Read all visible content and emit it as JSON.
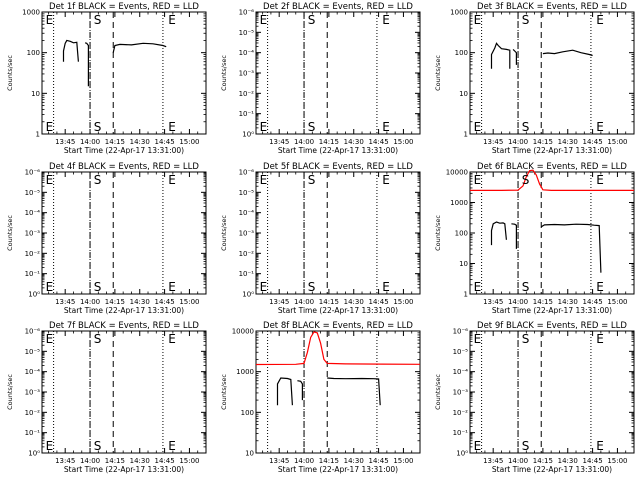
{
  "figure": {
    "x_tick_labels": [
      "13:45",
      "14:00",
      "14:15",
      "14:30",
      "14:45",
      "15:00"
    ],
    "x_label": "Start Time (22-Apr-17 13:31:00)",
    "y_label": "Counts/sec"
  },
  "chart_data": [
    {
      "type": "line",
      "title": "Det 1f BLACK = Events, RED = LLD",
      "xlim": [
        "13:31",
        "15:10"
      ],
      "ylim": [
        1,
        1000
      ],
      "yscale": "log",
      "ytick_labels": [
        "1",
        "10",
        "100",
        "1000"
      ],
      "markers": [
        {
          "text": "E",
          "x": "13:32"
        },
        {
          "text": "S",
          "x": "14:01"
        },
        {
          "text": "E",
          "x": "14:46"
        }
      ],
      "vlines_dotted": [
        "13:38",
        "14:00",
        "14:44"
      ],
      "vlines_dashed": [
        "14:00",
        "14:14"
      ],
      "series": [
        {
          "color": "#000000",
          "points": [
            [
              "13:44",
              60
            ],
            [
              "13:44",
              110
            ],
            [
              "13:45",
              170
            ],
            [
              "13:46",
              200
            ],
            [
              "13:48",
              190
            ],
            [
              "13:50",
              175
            ],
            [
              "13:52",
              180
            ],
            [
              "13:53",
              60
            ]
          ]
        },
        {
          "color": "#000000",
          "points": [
            [
              "13:57",
              175
            ],
            [
              "13:58",
              170
            ],
            [
              "13:59",
              150
            ],
            [
              "13:59",
              15
            ]
          ]
        },
        {
          "color": "#000000",
          "points": [
            [
              "14:14",
              100
            ],
            [
              "14:15",
              150
            ],
            [
              "14:18",
              160
            ],
            [
              "14:25",
              155
            ],
            [
              "14:32",
              170
            ],
            [
              "14:38",
              165
            ],
            [
              "14:44",
              150
            ],
            [
              "14:46",
              140
            ]
          ]
        }
      ]
    },
    {
      "type": "line",
      "title": "Det 2f BLACK = Events, RED = LLD",
      "xlim": [
        "13:31",
        "15:10"
      ],
      "ylim": [
        1,
        1000000
      ],
      "yscale": "log",
      "ytick_labels": [
        "10⁰",
        "10⁻¹",
        "10⁻²",
        "10⁻³",
        "10⁻⁴",
        "10⁻⁵",
        "10⁻⁶"
      ],
      "markers": [
        {
          "text": "E",
          "x": "13:32"
        },
        {
          "text": "S",
          "x": "14:01"
        },
        {
          "text": "E",
          "x": "14:46"
        }
      ],
      "vlines_dotted": [
        "13:38",
        "14:00",
        "14:44"
      ],
      "vlines_dashed": [
        "14:00",
        "14:14"
      ],
      "series": []
    },
    {
      "type": "line",
      "title": "Det 3f BLACK = Events, RED = LLD",
      "xlim": [
        "13:31",
        "15:10"
      ],
      "ylim": [
        1,
        1000
      ],
      "yscale": "log",
      "ytick_labels": [
        "1",
        "10",
        "100",
        "1000"
      ],
      "markers": [
        {
          "text": "E",
          "x": "13:32"
        },
        {
          "text": "S",
          "x": "14:01"
        },
        {
          "text": "E",
          "x": "14:46"
        }
      ],
      "vlines_dotted": [
        "13:38",
        "14:00",
        "14:44"
      ],
      "vlines_dashed": [
        "14:00",
        "14:14"
      ],
      "series": [
        {
          "color": "#000000",
          "points": [
            [
              "13:44",
              40
            ],
            [
              "13:44",
              90
            ],
            [
              "13:46",
              130
            ],
            [
              "13:47",
              170
            ],
            [
              "13:48",
              150
            ],
            [
              "13:50",
              125
            ],
            [
              "13:53",
              120
            ],
            [
              "13:55",
              115
            ],
            [
              "13:55",
              40
            ]
          ]
        },
        {
          "color": "#000000",
          "points": [
            [
              "13:57",
              120
            ],
            [
              "13:58",
              110
            ],
            [
              "13:59",
              100
            ],
            [
              "13:59",
              50
            ]
          ]
        },
        {
          "color": "#000000",
          "points": [
            [
              "14:15",
              95
            ],
            [
              "14:18",
              98
            ],
            [
              "14:22",
              95
            ],
            [
              "14:27",
              105
            ],
            [
              "14:33",
              115
            ],
            [
              "14:38",
              100
            ],
            [
              "14:43",
              90
            ],
            [
              "14:45",
              85
            ]
          ]
        }
      ]
    },
    {
      "type": "line",
      "title": "Det 4f BLACK = Events, RED = LLD",
      "xlim": [
        "13:31",
        "15:10"
      ],
      "ylim": [
        1,
        1000000
      ],
      "yscale": "log",
      "ytick_labels": [
        "10⁰",
        "10⁻¹",
        "10⁻²",
        "10⁻³",
        "10⁻⁴",
        "10⁻⁵",
        "10⁻⁶"
      ],
      "markers": [
        {
          "text": "E",
          "x": "13:32"
        },
        {
          "text": "S",
          "x": "14:01"
        },
        {
          "text": "E",
          "x": "14:46"
        }
      ],
      "vlines_dotted": [
        "13:38",
        "14:00",
        "14:44"
      ],
      "vlines_dashed": [
        "14:00",
        "14:14"
      ],
      "series": []
    },
    {
      "type": "line",
      "title": "Det 5f BLACK = Events, RED = LLD",
      "xlim": [
        "13:31",
        "15:10"
      ],
      "ylim": [
        1,
        1000000
      ],
      "yscale": "log",
      "ytick_labels": [
        "10⁰",
        "10⁻¹",
        "10⁻²",
        "10⁻³",
        "10⁻⁴",
        "10⁻⁵",
        "10⁻⁶"
      ],
      "markers": [
        {
          "text": "E",
          "x": "13:32"
        },
        {
          "text": "S",
          "x": "14:01"
        },
        {
          "text": "E",
          "x": "14:46"
        }
      ],
      "vlines_dotted": [
        "13:38",
        "14:00",
        "14:44"
      ],
      "vlines_dashed": [
        "14:00",
        "14:14"
      ],
      "series": []
    },
    {
      "type": "line",
      "title": "Det 6f BLACK = Events, RED = LLD",
      "xlim": [
        "13:31",
        "15:10"
      ],
      "ylim": [
        1,
        10000
      ],
      "yscale": "log",
      "ytick_labels": [
        "1",
        "10",
        "100",
        "1000",
        "10000"
      ],
      "markers": [
        {
          "text": "E",
          "x": "13:32"
        },
        {
          "text": "S",
          "x": "14:01"
        },
        {
          "text": "E",
          "x": "14:46"
        }
      ],
      "vlines_dotted": [
        "13:38",
        "14:00",
        "14:44"
      ],
      "vlines_dashed": [
        "14:00",
        "14:14"
      ],
      "series": [
        {
          "color": "#ff0000",
          "points": [
            [
              "13:31",
              2500
            ],
            [
              "13:50",
              2500
            ],
            [
              "14:00",
              2550
            ],
            [
              "14:03",
              3500
            ],
            [
              "14:05",
              7000
            ],
            [
              "14:07",
              11000
            ],
            [
              "14:09",
              11500
            ],
            [
              "14:11",
              8000
            ],
            [
              "14:13",
              4000
            ],
            [
              "14:15",
              2600
            ],
            [
              "14:20",
              2500
            ],
            [
              "15:10",
              2500
            ]
          ]
        },
        {
          "color": "#000000",
          "points": [
            [
              "13:44",
              40
            ],
            [
              "13:44",
              120
            ],
            [
              "13:45",
              200
            ],
            [
              "13:47",
              230
            ],
            [
              "13:49",
              210
            ],
            [
              "13:51",
              215
            ],
            [
              "13:52",
              200
            ],
            [
              "13:53",
              60
            ]
          ]
        },
        {
          "color": "#000000",
          "points": [
            [
              "13:56",
              200
            ],
            [
              "13:58",
              195
            ],
            [
              "13:59",
              180
            ],
            [
              "13:59",
              30
            ]
          ]
        },
        {
          "color": "#000000",
          "points": [
            [
              "14:14",
              160
            ],
            [
              "14:16",
              185
            ],
            [
              "14:22",
              190
            ],
            [
              "14:28",
              185
            ],
            [
              "14:35",
              195
            ],
            [
              "14:42",
              190
            ],
            [
              "14:46",
              180
            ],
            [
              "14:49",
              175
            ],
            [
              "14:50",
              5
            ]
          ]
        }
      ]
    },
    {
      "type": "line",
      "title": "Det 7f BLACK = Events, RED = LLD",
      "xlim": [
        "13:31",
        "15:10"
      ],
      "ylim": [
        1,
        1000000
      ],
      "yscale": "log",
      "ytick_labels": [
        "10⁰",
        "10⁻¹",
        "10⁻²",
        "10⁻³",
        "10⁻⁴",
        "10⁻⁵",
        "10⁻⁶"
      ],
      "markers": [
        {
          "text": "E",
          "x": "13:32"
        },
        {
          "text": "S",
          "x": "14:01"
        },
        {
          "text": "E",
          "x": "14:46"
        }
      ],
      "vlines_dotted": [
        "13:38",
        "14:00",
        "14:44"
      ],
      "vlines_dashed": [
        "14:00",
        "14:14"
      ],
      "series": []
    },
    {
      "type": "line",
      "title": "Det 8f BLACK = Events, RED = LLD",
      "xlim": [
        "13:31",
        "15:10"
      ],
      "ylim": [
        10,
        10000
      ],
      "yscale": "log",
      "ytick_labels": [
        "10",
        "100",
        "1000",
        "10000"
      ],
      "markers": [],
      "vlines_dotted": [
        "13:38",
        "14:00",
        "14:44"
      ],
      "vlines_dashed": [
        "14:00",
        "14:14"
      ],
      "series": [
        {
          "color": "#ff0000",
          "points": [
            [
              "13:31",
              1500
            ],
            [
              "13:55",
              1520
            ],
            [
              "14:00",
              1600
            ],
            [
              "14:02",
              3000
            ],
            [
              "14:04",
              7000
            ],
            [
              "14:06",
              9500
            ],
            [
              "14:08",
              9000
            ],
            [
              "14:10",
              5000
            ],
            [
              "14:12",
              2000
            ],
            [
              "14:14",
              1600
            ],
            [
              "14:25",
              1550
            ],
            [
              "15:10",
              1520
            ]
          ]
        },
        {
          "color": "#000000",
          "points": [
            [
              "13:44",
              150
            ],
            [
              "13:44",
              500
            ],
            [
              "13:46",
              700
            ],
            [
              "13:50",
              680
            ],
            [
              "13:52",
              640
            ],
            [
              "13:53",
              150
            ]
          ]
        },
        {
          "color": "#000000",
          "points": [
            [
              "13:56",
              600
            ],
            [
              "13:58",
              580
            ],
            [
              "13:59",
              500
            ],
            [
              "13:59",
              200
            ]
          ]
        },
        {
          "color": "#000000",
          "points": [
            [
              "14:14",
              700
            ],
            [
              "14:18",
              680
            ],
            [
              "14:25",
              670
            ],
            [
              "14:35",
              680
            ],
            [
              "14:42",
              670
            ],
            [
              "14:45",
              660
            ],
            [
              "14:46",
              150
            ]
          ]
        }
      ]
    },
    {
      "type": "line",
      "title": "Det 9f BLACK = Events, RED = LLD",
      "xlim": [
        "13:31",
        "15:10"
      ],
      "ylim": [
        1,
        1000000
      ],
      "yscale": "log",
      "ytick_labels": [
        "10⁰",
        "10⁻¹",
        "10⁻²",
        "10⁻³",
        "10⁻⁴",
        "10⁻⁵",
        "10⁻⁶"
      ],
      "markers": [
        {
          "text": "E",
          "x": "13:32"
        },
        {
          "text": "S",
          "x": "14:01"
        },
        {
          "text": "E",
          "x": "14:46"
        }
      ],
      "vlines_dotted": [
        "13:38",
        "14:00",
        "14:44"
      ],
      "vlines_dashed": [
        "14:00",
        "14:14"
      ],
      "series": []
    }
  ]
}
